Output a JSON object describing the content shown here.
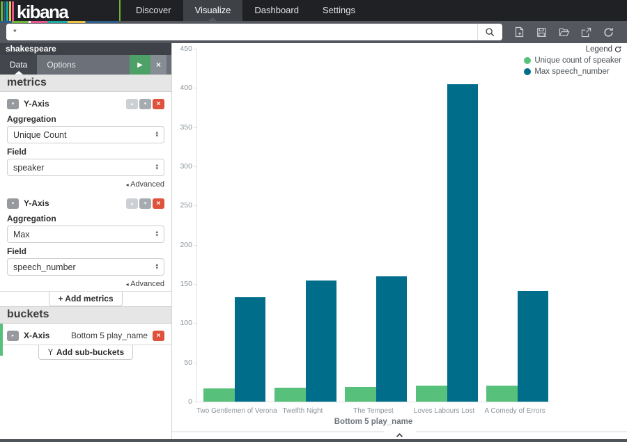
{
  "topnav": {
    "logo_text": "kibana",
    "items": [
      {
        "label": "Discover",
        "active": false
      },
      {
        "label": "Visualize",
        "active": true
      },
      {
        "label": "Dashboard",
        "active": false
      },
      {
        "label": "Settings",
        "active": false
      }
    ]
  },
  "toolbar": {
    "query_value": "*",
    "icon_names": [
      "search",
      "new-document",
      "save",
      "folder-open",
      "share",
      "refresh"
    ]
  },
  "sidebar": {
    "index_name": "shakespeare",
    "tabs": [
      {
        "label": "Data",
        "active": true
      },
      {
        "label": "Options",
        "active": false
      }
    ],
    "apply_icon": "play",
    "discard_icon": "close",
    "metrics_heading": "metrics",
    "metrics": [
      {
        "title": "Y-Axis",
        "aggregation_label": "Aggregation",
        "aggregation_value": "Unique Count",
        "field_label": "Field",
        "field_value": "speaker",
        "advanced_label": "Advanced"
      },
      {
        "title": "Y-Axis",
        "aggregation_label": "Aggregation",
        "aggregation_value": "Max",
        "field_label": "Field",
        "field_value": "speech_number",
        "advanced_label": "Advanced"
      }
    ],
    "add_metrics_label": "+ Add metrics",
    "buckets_heading": "buckets",
    "bucket": {
      "title": "X-Axis",
      "summary": "Bottom 5 play_name"
    },
    "add_subbuckets_label": "Add sub-buckets"
  },
  "legend": {
    "title": "Legend",
    "toggle_icon": "circular-arrow",
    "entries": [
      {
        "label": "Unique count of speaker",
        "color": "#57c17b"
      },
      {
        "label": "Max speech_number",
        "color": "#006e8a"
      }
    ]
  },
  "chart_data": {
    "type": "bar",
    "categories": [
      "Two Gentlemen of Verona",
      "Twelfth Night",
      "The Tempest",
      "Loves Labours Lost",
      "A Comedy of Errors"
    ],
    "series": [
      {
        "name": "Unique count of speaker",
        "color": "#57c17b",
        "values": [
          17,
          18,
          19,
          20,
          20
        ]
      },
      {
        "name": "Max speech_number",
        "color": "#006e8a",
        "values": [
          133,
          154,
          160,
          405,
          141
        ]
      }
    ],
    "title": "",
    "xlabel": "Bottom 5 play_name",
    "ylabel": "",
    "ylim": [
      0,
      450
    ],
    "yticks": [
      0,
      50,
      100,
      150,
      200,
      250,
      300,
      350,
      400,
      450
    ],
    "grid": false,
    "legend_position": "top-right"
  },
  "colors": {
    "bar_green": "#57c17b",
    "bar_teal": "#006e8a",
    "topnav_bg": "#1f2124",
    "toolbar_bg": "#54575e",
    "danger_red": "#df533d",
    "apply_green": "#4da167"
  }
}
